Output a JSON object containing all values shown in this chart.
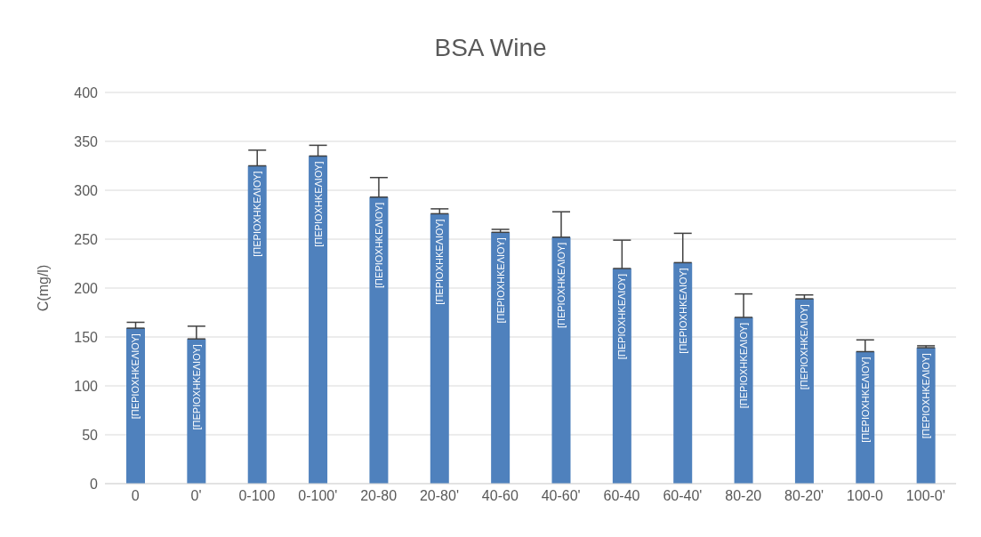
{
  "chart_data": {
    "type": "bar",
    "title": "BSA Wine",
    "ylabel": "C(mg/l)",
    "categories": [
      "0",
      "0'",
      "0-100",
      "0-100'",
      "20-80",
      "20-80'",
      "40-60",
      "40-60'",
      "60-40",
      "60-40'",
      "80-20",
      "80-20'",
      "100-0",
      "100-0'"
    ],
    "values": [
      159,
      148,
      325,
      335,
      293,
      276,
      257,
      252,
      220,
      226,
      170,
      189,
      135,
      139
    ],
    "errors": [
      [
        159,
        165
      ],
      [
        148,
        161
      ],
      [
        325,
        341
      ],
      [
        335,
        346
      ],
      [
        293,
        313
      ],
      [
        276,
        281
      ],
      [
        257,
        260
      ],
      [
        252,
        278
      ],
      [
        220,
        249
      ],
      [
        226,
        256
      ],
      [
        170,
        194
      ],
      [
        189,
        193
      ],
      [
        135,
        147
      ],
      [
        139,
        141
      ]
    ],
    "value_labels": [
      "[ΠΕΡΙΟΧΗΚΕΛΙΟΥ]",
      "[ΠΕΡΙΟΧΗΚΕΛΙΟΥ]",
      "[ΠΕΡΙΟΧΗΚΕΛΙΟΥ]",
      "[ΠΕΡΙΟΧΗΚΕΛΙΟΥ]",
      "[ΠΕΡΙΟΧΗΚΕΛΙΟΥ]",
      "[ΠΕΡΙΟΧΗΚΕΛΙΟΥ]",
      "[ΠΕΡΙΟΧΗΚΕΛΙΟΥ]",
      "[ΠΕΡΙΟΧΗΚΕΛΙΟΥ]",
      "[ΠΕΡΙΟΧΗΚΕΛΙΟΥ]",
      "[ΠΕΡΙΟΧΗΚΕΛΙΟΥ]",
      "[ΠΕΡΙΟΧΗΚΕΛΙΟΥ]",
      "[ΠΕΡΙΟΧΗΚΕΛΙΟΥ]",
      "[ΠΕΡΙΟΧΗΚΕΛΙΟΥ]",
      "[ΠΕΡΙΟΧΗΚΕΛΙΟΥ]"
    ],
    "color": "#4f81bd",
    "ylim": [
      0,
      400
    ],
    "yticks": [
      0,
      50,
      100,
      150,
      200,
      250,
      300,
      350,
      400
    ],
    "grid": "y",
    "legend": false
  }
}
